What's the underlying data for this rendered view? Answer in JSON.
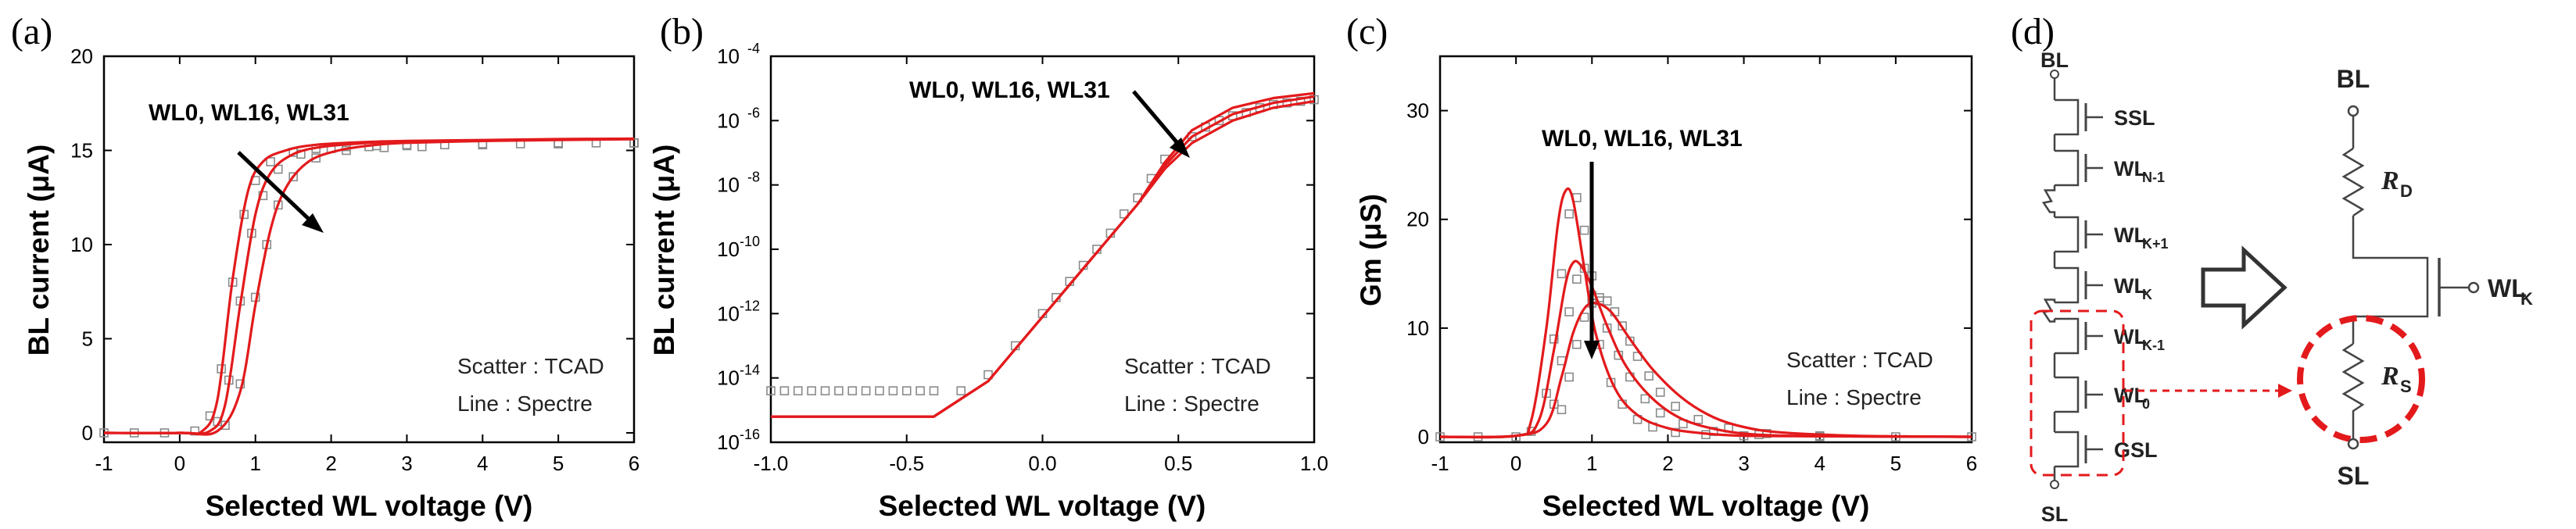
{
  "panels": {
    "a": "(a)",
    "b": "(b)",
    "c": "(c)",
    "d": "(d)"
  },
  "colors": {
    "line": "#e31a1c",
    "scatter": "#8a8a8a",
    "dashed": "#e31a1c"
  },
  "chart_data": [
    {
      "type": "line",
      "panel": "a",
      "xlabel": "Selected WL voltage (V)",
      "ylabel": "BL current (μA)",
      "xlim": [
        -1,
        6
      ],
      "ylim": [
        -0.5,
        20
      ],
      "xticks": [
        "-1",
        "0",
        "1",
        "2",
        "3",
        "4",
        "5",
        "6"
      ],
      "yticks": [
        "0",
        "5",
        "10",
        "15",
        "20"
      ],
      "annotation": "WL0, WL16, WL31",
      "notes": [
        "Scatter : TCAD",
        "Line : Spectre"
      ],
      "series": [
        {
          "name": "WL0",
          "x": [
            -1,
            0,
            0.3,
            0.5,
            0.7,
            0.9,
            1.1,
            1.4,
            1.8,
            2.5,
            3,
            4,
            5,
            6
          ],
          "y": [
            0,
            0,
            0.1,
            1.8,
            8.2,
            12.8,
            14.4,
            15.0,
            15.3,
            15.45,
            15.5,
            15.55,
            15.6,
            15.62
          ]
        },
        {
          "name": "WL16",
          "x": [
            -1,
            0,
            0.4,
            0.6,
            0.8,
            1.0,
            1.2,
            1.5,
            1.9,
            2.5,
            3,
            4,
            5,
            6
          ],
          "y": [
            0,
            0,
            0.1,
            1.5,
            6.8,
            11.6,
            13.8,
            14.8,
            15.2,
            15.4,
            15.48,
            15.53,
            15.58,
            15.6
          ]
        },
        {
          "name": "WL31",
          "x": [
            -1,
            0,
            0.5,
            0.8,
            1.0,
            1.2,
            1.4,
            1.7,
            2.1,
            2.6,
            3,
            4,
            5,
            6
          ],
          "y": [
            0,
            0,
            0.1,
            2.2,
            6.8,
            10.8,
            13.0,
            14.4,
            15.0,
            15.3,
            15.4,
            15.5,
            15.55,
            15.6
          ]
        }
      ],
      "scatter": [
        {
          "name": "WL0",
          "x": [
            -1,
            -0.6,
            -0.2,
            0.2,
            0.4,
            0.55,
            0.7,
            0.85,
            1.0,
            1.2,
            1.5,
            1.8,
            2.2,
            2.6,
            3.0,
            3.5,
            4.0,
            4.5,
            5.0,
            5.5,
            6.0
          ],
          "y": [
            0,
            0,
            0,
            0.1,
            0.9,
            3.4,
            8.0,
            11.6,
            13.4,
            14.4,
            14.9,
            15.1,
            15.2,
            15.25,
            15.3,
            15.3,
            15.35,
            15.35,
            15.4,
            15.4,
            15.4
          ]
        },
        {
          "name": "WL16",
          "x": [
            0.5,
            0.65,
            0.8,
            0.95,
            1.1,
            1.3,
            1.6,
            2.0,
            2.5,
            3.0,
            4.0,
            5.0,
            6.0
          ],
          "y": [
            0.6,
            2.8,
            7.0,
            10.6,
            12.6,
            14.0,
            14.8,
            15.1,
            15.2,
            15.25,
            15.3,
            15.35,
            15.4
          ]
        },
        {
          "name": "WL31",
          "x": [
            0.6,
            0.8,
            1.0,
            1.15,
            1.3,
            1.5,
            1.8,
            2.2,
            2.7,
            3.2,
            4.0,
            5.0,
            6.0
          ],
          "y": [
            0.4,
            2.6,
            7.2,
            10.0,
            12.1,
            13.6,
            14.6,
            15.0,
            15.15,
            15.2,
            15.3,
            15.35,
            15.4
          ]
        }
      ]
    },
    {
      "type": "line",
      "panel": "b",
      "scale": "log",
      "xlabel": "Selected WL voltage (V)",
      "ylabel": "BL current (μA)",
      "xlim": [
        -1.0,
        1.0
      ],
      "ylim_log10": [
        -16,
        -4
      ],
      "xticks": [
        "-1.0",
        "-0.5",
        "0.0",
        "0.5",
        "1.0"
      ],
      "yticks": [
        "10-16",
        "10-14",
        "10-12",
        "10-10",
        "10-8",
        "10-6",
        "10-4"
      ],
      "annotation": "WL0, WL16, WL31",
      "notes": [
        "Scatter : TCAD",
        "Line : Spectre"
      ],
      "series": [
        {
          "name": "WL0",
          "x": [
            -1.0,
            -0.4,
            -0.2,
            0.0,
            0.2,
            0.35,
            0.45,
            0.55,
            0.7,
            0.85,
            1.0
          ],
          "log10_y": [
            -15.2,
            -15.2,
            -14.1,
            -12.1,
            -10.1,
            -8.6,
            -7.3,
            -6.3,
            -5.6,
            -5.3,
            -5.15
          ]
        },
        {
          "name": "WL16",
          "x": [
            -1.0,
            -0.4,
            -0.2,
            0.0,
            0.2,
            0.35,
            0.45,
            0.55,
            0.7,
            0.85,
            1.0
          ],
          "log10_y": [
            -15.2,
            -15.2,
            -14.1,
            -12.1,
            -10.1,
            -8.6,
            -7.4,
            -6.5,
            -5.8,
            -5.45,
            -5.25
          ]
        },
        {
          "name": "WL31",
          "x": [
            -1.0,
            -0.4,
            -0.2,
            0.0,
            0.2,
            0.35,
            0.45,
            0.55,
            0.7,
            0.85,
            1.0
          ],
          "log10_y": [
            -15.2,
            -15.2,
            -14.1,
            -12.1,
            -10.1,
            -8.6,
            -7.5,
            -6.7,
            -6.0,
            -5.6,
            -5.4
          ]
        }
      ],
      "scatter": [
        {
          "name": "TCAD",
          "x": [
            -1.0,
            -0.95,
            -0.9,
            -0.85,
            -0.8,
            -0.75,
            -0.7,
            -0.65,
            -0.6,
            -0.55,
            -0.5,
            -0.45,
            -0.4,
            -0.3,
            -0.2,
            -0.1,
            0.0,
            0.05,
            0.1,
            0.15,
            0.2,
            0.25,
            0.3,
            0.35,
            0.4,
            0.45,
            0.5,
            0.55,
            0.6,
            0.65,
            0.7,
            0.75,
            0.8,
            0.85,
            0.9,
            0.95,
            1.0
          ],
          "log10_y": [
            -14.4,
            -14.4,
            -14.4,
            -14.4,
            -14.4,
            -14.4,
            -14.4,
            -14.4,
            -14.4,
            -14.4,
            -14.4,
            -14.4,
            -14.4,
            -14.4,
            -13.9,
            -13.0,
            -12.0,
            -11.5,
            -11.0,
            -10.5,
            -10.0,
            -9.5,
            -8.9,
            -8.4,
            -7.8,
            -7.2,
            -6.8,
            -6.5,
            -6.2,
            -6.0,
            -5.85,
            -5.75,
            -5.6,
            -5.5,
            -5.45,
            -5.4,
            -5.35
          ]
        }
      ]
    },
    {
      "type": "line",
      "panel": "c",
      "xlabel": "Selected WL voltage (V)",
      "ylabel": "Gm (μS)",
      "xlim": [
        -1,
        6
      ],
      "ylim": [
        -0.5,
        35
      ],
      "xticks": [
        "-1",
        "0",
        "1",
        "2",
        "3",
        "4",
        "5",
        "6"
      ],
      "yticks": [
        "0",
        "10",
        "20",
        "30"
      ],
      "annotation": "WL0, WL16, WL31",
      "notes": [
        "Scatter : TCAD",
        "Line : Spectre"
      ],
      "series": [
        {
          "name": "WL0",
          "x": [
            -1,
            0,
            0.2,
            0.4,
            0.55,
            0.65,
            0.75,
            0.9,
            1.05,
            1.3,
            1.6,
            2.0,
            2.5,
            3,
            4,
            6
          ],
          "y": [
            0,
            0.1,
            1.5,
            10.0,
            19.5,
            22.6,
            21.8,
            15.5,
            9.5,
            4.5,
            2.0,
            0.8,
            0.3,
            0.1,
            0.05,
            0
          ]
        },
        {
          "name": "WL16",
          "x": [
            -1,
            0,
            0.3,
            0.5,
            0.65,
            0.75,
            0.85,
            1.0,
            1.2,
            1.45,
            1.8,
            2.2,
            2.7,
            3.2,
            4,
            6
          ],
          "y": [
            0,
            0.1,
            1.5,
            8.0,
            14.0,
            16.0,
            15.8,
            13.8,
            10.2,
            6.5,
            3.5,
            1.6,
            0.6,
            0.2,
            0.05,
            0
          ]
        },
        {
          "name": "WL31",
          "x": [
            -1,
            0,
            0.4,
            0.6,
            0.75,
            0.9,
            1.05,
            1.25,
            1.5,
            1.8,
            2.2,
            2.6,
            3.0,
            3.5,
            4.5,
            6
          ],
          "y": [
            0,
            0.1,
            1.2,
            5.5,
            9.5,
            11.8,
            12.3,
            11.5,
            9.0,
            6.2,
            3.5,
            1.8,
            0.9,
            0.4,
            0.1,
            0
          ]
        }
      ],
      "scatter": [
        {
          "name": "WL0",
          "x": [
            -1,
            -0.5,
            0,
            0.2,
            0.4,
            0.5,
            0.6,
            0.7,
            0.8,
            0.9,
            1.0,
            1.1,
            1.25,
            1.4,
            1.6,
            1.8,
            2.1,
            2.5,
            3,
            4,
            5,
            6
          ],
          "y": [
            0,
            0,
            0,
            0.5,
            4.0,
            9.0,
            15.0,
            20.5,
            22.0,
            19.0,
            13.0,
            8.5,
            5.0,
            3.0,
            1.6,
            0.9,
            0.4,
            0.2,
            0.1,
            0,
            0,
            0
          ]
        },
        {
          "name": "WL16",
          "x": [
            0.5,
            0.6,
            0.7,
            0.8,
            0.9,
            1.0,
            1.1,
            1.2,
            1.35,
            1.5,
            1.7,
            1.9,
            2.2,
            2.6,
            3.2
          ],
          "y": [
            3.0,
            7.0,
            11.5,
            14.5,
            15.5,
            14.8,
            12.5,
            10.0,
            7.5,
            5.5,
            3.5,
            2.2,
            1.2,
            0.5,
            0.2
          ]
        },
        {
          "name": "WL31",
          "x": [
            0.6,
            0.7,
            0.8,
            0.9,
            1.0,
            1.1,
            1.2,
            1.3,
            1.4,
            1.5,
            1.6,
            1.75,
            1.9,
            2.1,
            2.4,
            2.8,
            3.3,
            4.0
          ],
          "y": [
            2.5,
            5.5,
            8.5,
            11.0,
            12.3,
            12.8,
            12.5,
            11.5,
            10.2,
            8.8,
            7.4,
            5.6,
            4.1,
            2.8,
            1.6,
            0.8,
            0.3,
            0.1
          ]
        }
      ]
    }
  ],
  "circuit": {
    "left_top": "BL",
    "left_bottom": "SL",
    "transistors": [
      {
        "main": "SSL",
        "sub": ""
      },
      {
        "main": "WL",
        "sub": "N-1"
      },
      {
        "main": "WL",
        "sub": "K+1"
      },
      {
        "main": "WL",
        "sub": "K"
      },
      {
        "main": "WL",
        "sub": "K-1"
      },
      {
        "main": "WL",
        "sub": "0"
      },
      {
        "main": "GSL",
        "sub": ""
      }
    ],
    "right_top": "BL",
    "right_bottom": "SL",
    "rd_main": "R",
    "rd_sub": "D",
    "rs_main": "R",
    "rs_sub": "S",
    "gate_main": "WL",
    "gate_sub": "K"
  }
}
